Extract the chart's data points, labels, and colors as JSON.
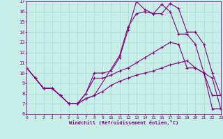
{
  "xlabel": "Windchill (Refroidissement éolien,°C)",
  "bg_color": "#c8eee8",
  "line_color": "#800080",
  "grid_color": "#a8d8d0",
  "xmin": 0,
  "xmax": 23,
  "ymin": 6,
  "ymax": 17,
  "line1_x": [
    0,
    1,
    2,
    3,
    4,
    5,
    6,
    7,
    8,
    11,
    12,
    13,
    14,
    15,
    16,
    17,
    18,
    19,
    20,
    21,
    22,
    23
  ],
  "line1_y": [
    10.5,
    9.5,
    8.5,
    8.5,
    7.8,
    7.0,
    7.0,
    7.5,
    7.8,
    11.7,
    14.5,
    15.8,
    16.0,
    15.8,
    16.7,
    16.0,
    13.8,
    13.8,
    12.8,
    10.0,
    7.8,
    7.8
  ],
  "line2_x": [
    0,
    1,
    2,
    3,
    4,
    5,
    6,
    7,
    8,
    9,
    10,
    11,
    12,
    13,
    14,
    15,
    16,
    17,
    18,
    19,
    20,
    21,
    22,
    23
  ],
  "line2_y": [
    10.5,
    9.5,
    8.5,
    8.5,
    7.8,
    7.0,
    7.0,
    8.0,
    10.0,
    10.0,
    10.2,
    11.5,
    14.2,
    17.0,
    16.2,
    15.8,
    15.8,
    16.8,
    16.3,
    14.0,
    14.0,
    12.8,
    10.0,
    7.8
  ],
  "line3_x": [
    0,
    1,
    2,
    3,
    4,
    5,
    6,
    7,
    8,
    9,
    10,
    11,
    12,
    13,
    14,
    15,
    16,
    17,
    18,
    19,
    20,
    21,
    22,
    23
  ],
  "line3_y": [
    10.5,
    9.5,
    8.5,
    8.5,
    7.8,
    7.0,
    7.0,
    8.0,
    9.5,
    9.5,
    9.8,
    10.2,
    10.5,
    11.0,
    11.5,
    12.0,
    12.5,
    13.0,
    12.8,
    10.5,
    10.5,
    10.0,
    9.5,
    6.5
  ],
  "line4_x": [
    1,
    2,
    3,
    4,
    5,
    6,
    7,
    8,
    9,
    10,
    11,
    12,
    13,
    14,
    15,
    16,
    17,
    18,
    19,
    20,
    21,
    22,
    23
  ],
  "line4_y": [
    9.5,
    8.5,
    8.5,
    7.8,
    7.0,
    7.0,
    7.5,
    7.8,
    8.2,
    8.8,
    9.2,
    9.5,
    9.8,
    10.0,
    10.2,
    10.5,
    10.8,
    11.0,
    11.2,
    10.5,
    10.0,
    6.5,
    6.5
  ],
  "yticks": [
    6,
    7,
    8,
    9,
    10,
    11,
    12,
    13,
    14,
    15,
    16,
    17
  ],
  "xticks": [
    0,
    1,
    2,
    3,
    4,
    5,
    6,
    7,
    8,
    9,
    10,
    11,
    12,
    13,
    14,
    15,
    16,
    17,
    18,
    19,
    20,
    21,
    22,
    23
  ]
}
